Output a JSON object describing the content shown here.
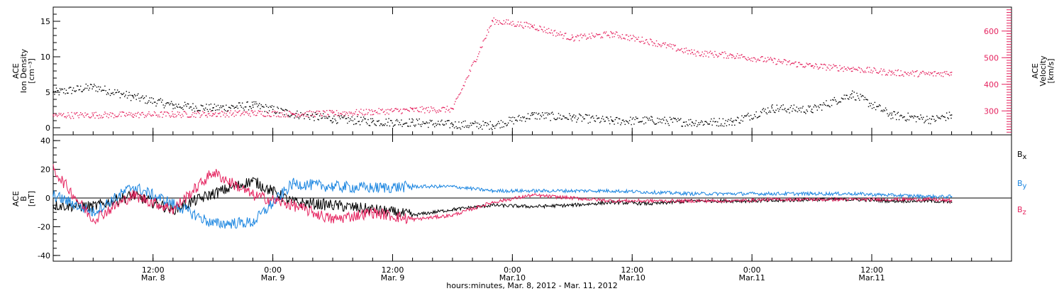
{
  "chart_data": [
    {
      "type": "scatter",
      "panel": "top",
      "ylabel_left": [
        "ACE",
        "Ion Density",
        "[cm⁻³]"
      ],
      "ylabel_right": [
        "ACE",
        "Velocity",
        "[km/s]"
      ],
      "y_left_ticks": [
        "0",
        "5",
        "10",
        "15"
      ],
      "y_left_lim": [
        -1,
        17
      ],
      "y_right_ticks": [
        "300",
        "400",
        "500",
        "600"
      ],
      "y_right_lim": [
        210,
        690
      ],
      "series": [
        {
          "axis": "left",
          "color": "#000000",
          "x": [
            0,
            4,
            8,
            12,
            16,
            20,
            24,
            28,
            32,
            36,
            40,
            44,
            48,
            52,
            56,
            60,
            64,
            68,
            72,
            76,
            80,
            84,
            88,
            90
          ],
          "y": [
            5.0,
            5.8,
            4.4,
            3.2,
            2.8,
            3.2,
            2.0,
            1.3,
            0.9,
            0.8,
            0.5,
            0.4,
            1.8,
            1.5,
            1.0,
            1.1,
            0.8,
            0.9,
            2.8,
            2.6,
            4.8,
            1.8,
            1.2,
            1.8
          ]
        },
        {
          "axis": "right",
          "color": "#e5235f",
          "x": [
            0,
            4,
            8,
            12,
            16,
            20,
            24,
            28,
            32,
            36,
            40,
            44,
            48,
            52,
            56,
            60,
            64,
            68,
            72,
            76,
            80,
            84,
            88,
            90
          ],
          "y": [
            285,
            286,
            287,
            288,
            290,
            293,
            290,
            292,
            298,
            305,
            308,
            640,
            620,
            575,
            590,
            560,
            520,
            510,
            490,
            470,
            460,
            445,
            440,
            445
          ]
        }
      ]
    },
    {
      "type": "line",
      "panel": "bottom",
      "ylabel": [
        "ACE",
        "B",
        "[nT]"
      ],
      "y_ticks": [
        "-40",
        "-20",
        "0",
        "20",
        "40"
      ],
      "ylim": [
        -44,
        44
      ],
      "legend": [
        "Bx",
        "By",
        "Bz"
      ],
      "series": [
        {
          "name": "Bx",
          "color": "#000000",
          "x": [
            0,
            4,
            8,
            12,
            16,
            20,
            24,
            28,
            32,
            36,
            40,
            44,
            48,
            52,
            56,
            60,
            64,
            68,
            72,
            76,
            80,
            84,
            88,
            90
          ],
          "y": [
            -5,
            -6,
            2,
            -8,
            3,
            12,
            -3,
            -5,
            -8,
            -12,
            -8,
            -5,
            -6,
            -5,
            -3,
            -4,
            -2,
            -2,
            -2,
            -1,
            -1,
            -2,
            -2,
            -3
          ]
        },
        {
          "name": "By",
          "color": "#1a85e0",
          "x": [
            0,
            4,
            8,
            12,
            16,
            20,
            24,
            28,
            32,
            36,
            40,
            44,
            48,
            52,
            56,
            60,
            64,
            68,
            72,
            76,
            80,
            84,
            88,
            90
          ],
          "y": [
            2,
            -10,
            8,
            -4,
            -18,
            -17,
            10,
            8,
            7,
            8,
            8,
            5,
            5,
            5,
            5,
            4,
            3,
            3,
            3,
            3,
            3,
            2,
            1,
            1
          ]
        },
        {
          "name": "Bz",
          "color": "#e5235f",
          "x": [
            0,
            4,
            8,
            12,
            16,
            20,
            24,
            28,
            32,
            36,
            40,
            44,
            48,
            52,
            56,
            60,
            64,
            68,
            72,
            76,
            80,
            84,
            88,
            90
          ],
          "y": [
            20,
            -15,
            2,
            -8,
            18,
            2,
            -5,
            -15,
            -10,
            -15,
            -12,
            -3,
            2,
            0,
            -2,
            -2,
            -2,
            -2,
            -1,
            -1,
            -1,
            -1,
            -1,
            -2
          ]
        }
      ]
    }
  ],
  "x_axis": {
    "tick_labels_top": [
      "12:00",
      "0:00",
      "12:00",
      "0:00",
      "12:00",
      "0:00",
      "12:00"
    ],
    "tick_labels_bottom": [
      "Mar. 8",
      "Mar. 9",
      "Mar. 9",
      "Mar.10",
      "Mar.10",
      "Mar.11",
      "Mar.11"
    ],
    "title": "hours:minutes, Mar.  8, 2012 - Mar. 11, 2012"
  },
  "legend_labels": {
    "bx": "B",
    "bx_sub": "x",
    "by": "B",
    "by_sub": "y",
    "bz": "B",
    "bz_sub": "z"
  }
}
